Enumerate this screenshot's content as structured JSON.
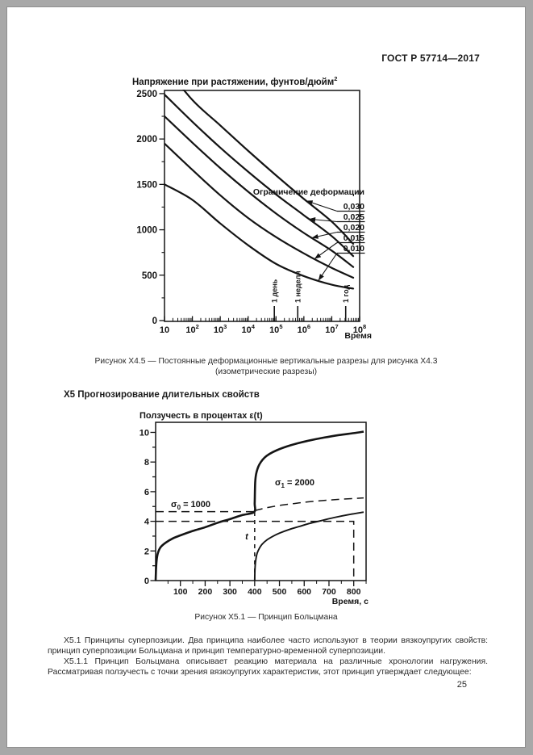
{
  "page": {
    "header": "ГОСТ Р 57714—2017",
    "page_number": "25",
    "section_heading": "Х5 Прогнозирование длительных свойств",
    "captions": {
      "fig_x45_line1": "Рисунок Х4.5 — Постоянные деформационные вертикальные разрезы для рисунка Х4.3",
      "fig_x45_line2": "(изометрические разрезы)",
      "fig_x51": "Рисунок Х5.1 — Принцип Больцмана"
    },
    "paragraphs": [
      "Х5.1 Принципы суперпозиции. Два принципа наиболее часто используют в теории вязкоупругих свойств: принцип суперпозиции Больцмана и принцип температурно-временной суперпозиции.",
      "Х5.1.1 Принцип Больцмана описывает реакцию материала на различные хронологии нагружения. Рассматривая ползучесть с точки зрения вязкоупругих характеристик, этот принцип утверждает следующее:"
    ]
  },
  "chart_data": [
    {
      "type": "line",
      "title": {
        "text": "Напряжение при растяжении, фунтов/дюйм",
        "sup": "2"
      },
      "xlabel": "Время",
      "x_scale": "log10",
      "xlim_log": [
        1,
        8
      ],
      "x_ticks": [
        {
          "base": "10",
          "exp": ""
        },
        {
          "base": "10",
          "exp": "2"
        },
        {
          "base": "10",
          "exp": "3"
        },
        {
          "base": "10",
          "exp": "4"
        },
        {
          "base": "10",
          "exp": "5"
        },
        {
          "base": "10",
          "exp": "6"
        },
        {
          "base": "10",
          "exp": "7"
        },
        {
          "base": "10",
          "exp": "8"
        }
      ],
      "ylim": [
        0,
        2500
      ],
      "y_ticks": [
        0,
        500,
        1000,
        1500,
        2000,
        2500
      ],
      "legend_title": "Ограничение деформации",
      "series": [
        {
          "name": "0,030",
          "log_t": [
            1,
            2,
            3,
            4,
            5,
            6,
            7,
            7.77
          ],
          "values": [
            2810,
            2430,
            2150,
            1870,
            1600,
            1340,
            1090,
            845
          ]
        },
        {
          "name": "0,025",
          "log_t": [
            1,
            2,
            3,
            4,
            5,
            6,
            7,
            7.77
          ],
          "values": [
            2490,
            2190,
            1905,
            1640,
            1390,
            1160,
            930,
            710
          ]
        },
        {
          "name": "0,020",
          "log_t": [
            1,
            2,
            3,
            4,
            5,
            6,
            7,
            7.77
          ],
          "values": [
            2250,
            1960,
            1680,
            1420,
            1180,
            965,
            770,
            590
          ]
        },
        {
          "name": "0,015",
          "log_t": [
            1,
            2,
            3,
            4,
            5,
            6,
            7,
            7.77
          ],
          "values": [
            1950,
            1660,
            1380,
            1130,
            920,
            740,
            580,
            472
          ]
        },
        {
          "name": "0,010",
          "log_t": [
            1,
            2,
            3,
            4,
            5,
            6,
            7,
            7.77
          ],
          "values": [
            1500,
            1330,
            1070,
            830,
            625,
            490,
            395,
            352
          ]
        }
      ],
      "time_markers": [
        {
          "label": "1 день",
          "log_t": 4.94
        },
        {
          "label": "1 неделя",
          "log_t": 5.78
        },
        {
          "label": "1 год",
          "log_t": 7.5
        }
      ]
    },
    {
      "type": "line",
      "title": "Ползучесть в процентах ε(t)",
      "xlabel": "Время, с",
      "xlim": [
        0,
        850
      ],
      "x_ticks": [
        100,
        200,
        300,
        400,
        500,
        600,
        700,
        800
      ],
      "ylim": [
        0,
        10.68
      ],
      "y_tick_labels": [
        0,
        2,
        4,
        6,
        8,
        10
      ],
      "annotations": [
        {
          "sym": "σ",
          "sub": "0",
          "text": " = 1000",
          "t": 62,
          "v": 4.95,
          "align": "start",
          "italic": false
        },
        {
          "sym": "σ",
          "sub": "1",
          "text": " = 2000",
          "t": 482,
          "v": 6.43,
          "align": "start",
          "italic": false
        },
        {
          "sym": "t",
          "sub": "",
          "text": "",
          "t": 374,
          "v": 2.78,
          "align": "end",
          "italic": true
        }
      ],
      "series": [
        {
          "name": "creep-response-total",
          "style": "thick",
          "points": [
            [
              0,
              0
            ],
            [
              2,
              0.9
            ],
            [
              5,
              1.5
            ],
            [
              10,
              1.9
            ],
            [
              20,
              2.25
            ],
            [
              40,
              2.55
            ],
            [
              70,
              2.85
            ],
            [
              100,
              3.05
            ],
            [
              150,
              3.35
            ],
            [
              200,
              3.6
            ],
            [
              250,
              3.9
            ],
            [
              300,
              4.15
            ],
            [
              350,
              4.42
            ],
            [
              398,
              4.62
            ],
            [
              400,
              5.2
            ],
            [
              401,
              6.0
            ],
            [
              402,
              6.6
            ],
            [
              404,
              7.0
            ],
            [
              408,
              7.35
            ],
            [
              415,
              7.7
            ],
            [
              425,
              8.0
            ],
            [
              440,
              8.3
            ],
            [
              460,
              8.55
            ],
            [
              490,
              8.8
            ],
            [
              530,
              9.05
            ],
            [
              570,
              9.25
            ],
            [
              620,
              9.45
            ],
            [
              680,
              9.65
            ],
            [
              740,
              9.82
            ],
            [
              800,
              9.95
            ],
            [
              840,
              10.05
            ]
          ]
        },
        {
          "name": "sigma0-creep-continuation",
          "style": "dashed",
          "points": [
            [
              400,
              4.72
            ],
            [
              450,
              4.92
            ],
            [
              500,
              5.07
            ],
            [
              560,
              5.2
            ],
            [
              620,
              5.32
            ],
            [
              690,
              5.42
            ],
            [
              760,
              5.5
            ],
            [
              840,
              5.58
            ]
          ]
        },
        {
          "name": "incremental-stress-response",
          "style": "solid",
          "points": [
            [
              400,
              0
            ],
            [
              401,
              0.7
            ],
            [
              403,
              1.2
            ],
            [
              406,
              1.55
            ],
            [
              410,
              1.85
            ],
            [
              418,
              2.15
            ],
            [
              430,
              2.45
            ],
            [
              450,
              2.75
            ],
            [
              475,
              3.0
            ],
            [
              500,
              3.2
            ],
            [
              540,
              3.45
            ],
            [
              580,
              3.65
            ],
            [
              620,
              3.85
            ],
            [
              670,
              4.05
            ],
            [
              720,
              4.25
            ],
            [
              780,
              4.45
            ],
            [
              840,
              4.62
            ]
          ]
        },
        {
          "name": "sigma0-strain-level",
          "style": "dashed",
          "points": [
            [
              0,
              4.65
            ],
            [
              400,
              4.65
            ]
          ]
        },
        {
          "name": "strain-reference-box",
          "style": "dashed",
          "points": [
            [
              0,
              4.0
            ],
            [
              800,
              4.0
            ],
            [
              800,
              0
            ]
          ]
        },
        {
          "name": "time-t-marker",
          "style": "dashed-short",
          "points": [
            [
              400,
              0
            ],
            [
              400,
              4.65
            ]
          ]
        }
      ]
    }
  ]
}
